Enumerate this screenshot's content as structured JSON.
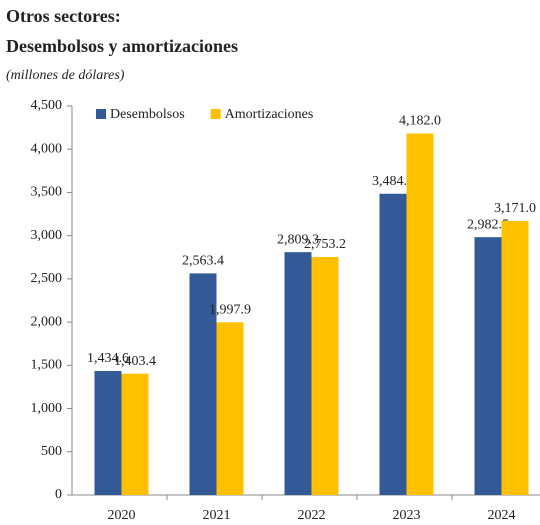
{
  "chart_data": {
    "type": "bar",
    "title": "Otros sectores:",
    "subtitle": "Desembolsos y amortizaciones",
    "note": "(millones de dólares)",
    "categories": [
      "2020",
      "2021",
      "2022",
      "2023",
      "2024"
    ],
    "series": [
      {
        "name": "Desembolsos",
        "color": "#335a96",
        "values": [
          1434.6,
          2563.4,
          2809.3,
          3484.8,
          2982.5
        ],
        "value_labels": [
          "1,434.6",
          "2,563.4",
          "2,809.3",
          "3,484.8",
          "2,982.5"
        ]
      },
      {
        "name": "Amortizaciones",
        "color": "#ffc000",
        "values": [
          1403.4,
          1997.9,
          2753.2,
          4182.0,
          3171.0
        ],
        "value_labels": [
          "1,403.4",
          "1,997.9",
          "2,753.2",
          "4,182.0",
          "3,171.0"
        ]
      }
    ],
    "ylim": [
      0,
      4500
    ],
    "yticks": [
      0,
      500,
      {
        "value": 1000,
        "label": "1,000"
      },
      {
        "value": 1500,
        "label": "1,500"
      },
      {
        "value": 2000,
        "label": "2,000"
      },
      {
        "value": 2500,
        "label": "2,500"
      },
      {
        "value": 3000,
        "label": "3,000"
      },
      {
        "value": 3500,
        "label": "3,500"
      },
      {
        "value": 4000,
        "label": "4,000"
      },
      {
        "value": 4500,
        "label": "4,500"
      }
    ],
    "legend": "top"
  }
}
